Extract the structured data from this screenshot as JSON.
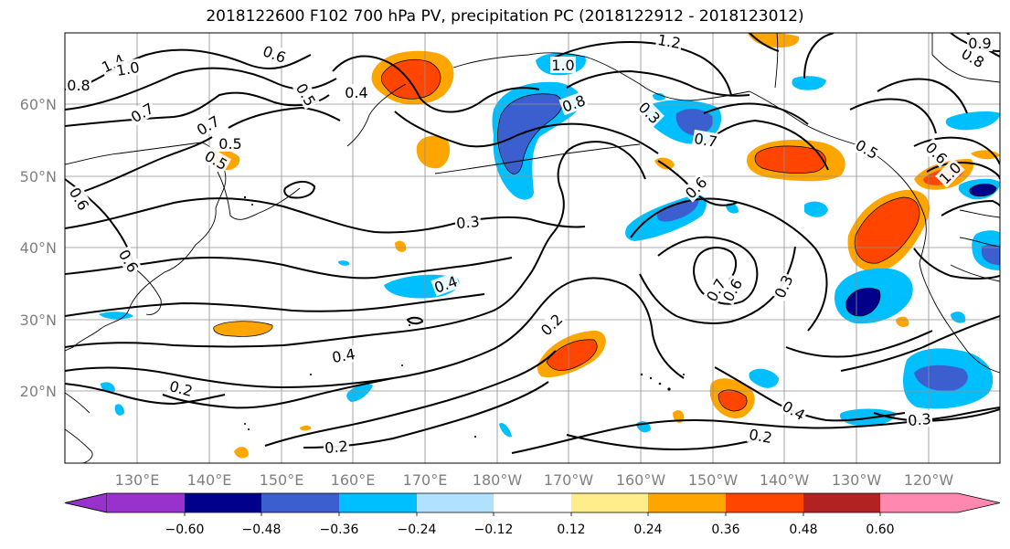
{
  "title": "2018122600 F102 700 hPa PV, precipitation PC (2018122912 - 2018123012)",
  "map": {
    "lat_labels": [
      "60°N",
      "50°N",
      "40°N",
      "30°N",
      "20°N"
    ],
    "lon_labels": [
      "130°E",
      "140°E",
      "150°E",
      "160°E",
      "170°E",
      "180°W",
      "170°W",
      "160°W",
      "150°W",
      "140°W",
      "130°W",
      "120°W"
    ],
    "contour_labels": [
      "1.4",
      "1.0",
      "0.8",
      "0.6",
      "0.7",
      "0.5",
      "0.4",
      "0.5",
      "0.7",
      "0.5",
      "0.6",
      "0.6",
      "1.0",
      "1.2",
      "0.8",
      "0.7",
      "0.5",
      "0.6",
      "0.3",
      "0.4",
      "0.2",
      "0.4",
      "0.2",
      "0.2",
      "0.3",
      "0.7",
      "0.6",
      "0.3",
      "0.4",
      "0.2",
      "0.3",
      "1.0",
      "0.8",
      "0.6",
      "0.9"
    ]
  },
  "colorbar": {
    "ticks": [
      "−0.60",
      "−0.48",
      "−0.36",
      "−0.24",
      "−0.12",
      "0.12",
      "0.24",
      "0.36",
      "0.48",
      "0.60"
    ],
    "colors": [
      "#9932cc",
      "#00008b",
      "#3c5fcf",
      "#00bfff",
      "#b0e2ff",
      "#ffffff",
      "#ffec8b",
      "#ffa500",
      "#ff4500",
      "#b22222",
      "#ff88b0"
    ]
  }
}
